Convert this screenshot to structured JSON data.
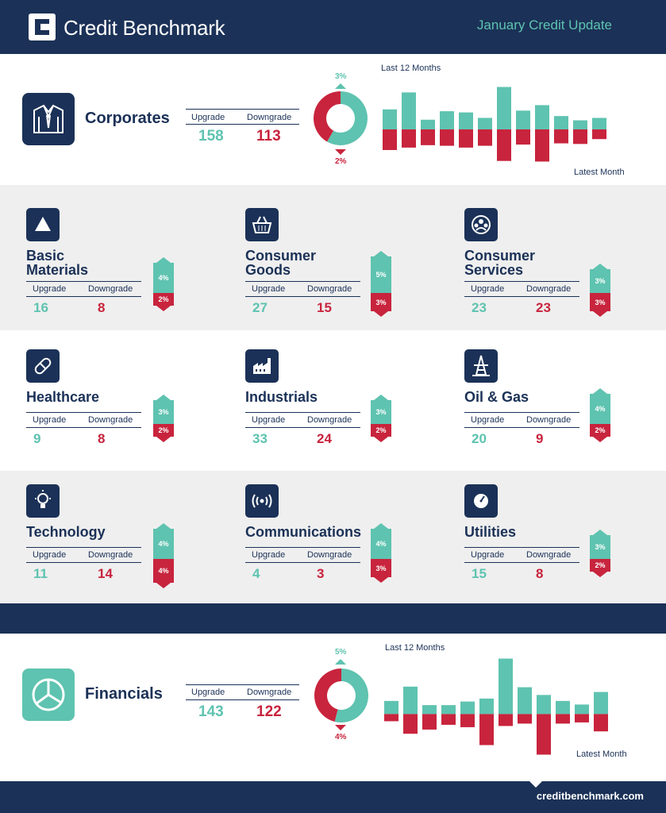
{
  "header": {
    "brand": "Credit Benchmark",
    "update_title": "January Credit Update"
  },
  "footer": {
    "url": "creditbenchmark.com"
  },
  "colors": {
    "navy": "#1b3157",
    "teal": "#5ec3b0",
    "red": "#c8243d",
    "grey": "#efefef"
  },
  "labels": {
    "upgrade": "Upgrade",
    "downgrade": "Downgrade"
  },
  "corporates": {
    "title": "Corporates",
    "icon": "shirt-tie-icon",
    "upgrade": "158",
    "downgrade": "113",
    "upgrade_pct": "3%",
    "downgrade_pct": "2%",
    "chart_top_label": "Last 12 Months",
    "chart_bottom_label": "Latest Month"
  },
  "financials": {
    "title": "Financials",
    "icon": "pie-chart-icon",
    "upgrade": "143",
    "downgrade": "122",
    "upgrade_pct": "5%",
    "downgrade_pct": "4%",
    "chart_top_label": "Last 12 Months",
    "chart_bottom_label": "Latest Month"
  },
  "industries": [
    {
      "title": [
        "Basic",
        "Materials"
      ],
      "icon": "triangle-icon",
      "upgrade": "16",
      "downgrade": "8",
      "up_pct": "4%",
      "dn_pct": "2%"
    },
    {
      "title": [
        "Consumer",
        "Goods"
      ],
      "icon": "basket-icon",
      "upgrade": "27",
      "downgrade": "15",
      "up_pct": "5%",
      "dn_pct": "3%"
    },
    {
      "title": [
        "Consumer",
        "Services"
      ],
      "icon": "people-icon",
      "upgrade": "23",
      "downgrade": "23",
      "up_pct": "3%",
      "dn_pct": "3%"
    },
    {
      "title": [
        "Healthcare"
      ],
      "icon": "pill-icon",
      "upgrade": "9",
      "downgrade": "8",
      "up_pct": "3%",
      "dn_pct": "2%"
    },
    {
      "title": [
        "Industrials"
      ],
      "icon": "factory-icon",
      "upgrade": "33",
      "downgrade": "24",
      "up_pct": "3%",
      "dn_pct": "2%"
    },
    {
      "title": [
        "Oil & Gas"
      ],
      "icon": "oil-rig-icon",
      "upgrade": "20",
      "downgrade": "9",
      "up_pct": "4%",
      "dn_pct": "2%"
    },
    {
      "title": [
        "Technology"
      ],
      "icon": "lightbulb-icon",
      "upgrade": "11",
      "downgrade": "14",
      "up_pct": "4%",
      "dn_pct": "4%"
    },
    {
      "title": [
        "Communications"
      ],
      "icon": "signal-icon",
      "upgrade": "4",
      "downgrade": "3",
      "up_pct": "4%",
      "dn_pct": "3%"
    },
    {
      "title": [
        "Utilities"
      ],
      "icon": "gauge-icon",
      "upgrade": "15",
      "downgrade": "8",
      "up_pct": "3%",
      "dn_pct": "2%"
    }
  ],
  "chart_data": [
    {
      "type": "pie",
      "section": "Corporates",
      "values": [
        158,
        113
      ],
      "categories": [
        "Upgrade",
        "Downgrade"
      ],
      "colors": [
        "#5ec3b0",
        "#c8243d"
      ]
    },
    {
      "type": "bar",
      "section": "Corporates",
      "title": "Last 12 Months",
      "xlabel": "Latest Month",
      "series": [
        {
          "values": [
            3.3,
            6.1,
            1.6,
            3.0,
            2.8,
            1.9,
            7.0,
            3.1,
            4.0,
            2.2,
            1.5,
            1.9
          ]
        },
        {
          "values": [
            -3.4,
            -3.0,
            -2.6,
            -2.7,
            -3.0,
            -2.7,
            -5.2,
            -2.5,
            -5.3,
            -2.3,
            -2.4,
            -1.6
          ]
        }
      ],
      "ylim": [
        -5.5,
        7.2
      ]
    },
    {
      "type": "pie",
      "section": "Financials",
      "values": [
        143,
        122
      ],
      "categories": [
        "Upgrade",
        "Downgrade"
      ],
      "colors": [
        "#5ec3b0",
        "#c8243d"
      ]
    },
    {
      "type": "bar",
      "section": "Financials",
      "title": "Last 12 Months",
      "xlabel": "Latest Month",
      "series": [
        {
          "values": [
            2.2,
            4.6,
            1.5,
            1.5,
            2.1,
            2.6,
            9.3,
            4.5,
            3.2,
            2.2,
            1.6,
            3.7
          ]
        },
        {
          "values": [
            -1.2,
            -3.3,
            -2.6,
            -1.8,
            -2.2,
            -5.2,
            -2.0,
            -1.6,
            -6.8,
            -1.6,
            -1.4,
            -2.9
          ]
        }
      ],
      "ylim": [
        -7,
        9.5
      ]
    }
  ]
}
